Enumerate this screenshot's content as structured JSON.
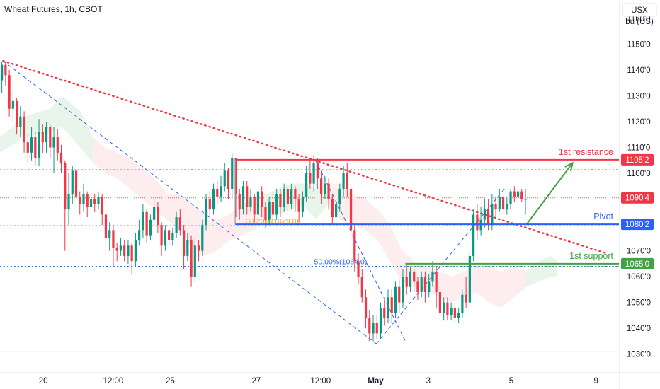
{
  "header": {
    "title": "Wheat Futures, 1h, CBOT",
    "currency_button": "USX",
    "unit_button": "bu (US)"
  },
  "chart_data": {
    "type": "candlestick",
    "title": "Wheat Futures, 1h, CBOT",
    "ylim": [
      1024,
      1166
    ],
    "xlim": [
      0,
      100
    ],
    "y_ticks": [
      {
        "value": 1160,
        "label": "1160'0"
      },
      {
        "value": 1150,
        "label": "1150'0"
      },
      {
        "value": 1140,
        "label": "1140'0"
      },
      {
        "value": 1130,
        "label": "1130'0"
      },
      {
        "value": 1120,
        "label": "1120'0"
      },
      {
        "value": 1110,
        "label": "1110'0"
      },
      {
        "value": 1100,
        "label": "1100'0"
      },
      {
        "value": 1070,
        "label": "1070'0"
      },
      {
        "value": 1060,
        "label": "1060'0"
      },
      {
        "value": 1050,
        "label": "1050'0"
      },
      {
        "value": 1040,
        "label": "1040'0"
      },
      {
        "value": 1030,
        "label": "1030'0"
      }
    ],
    "x_ticks": [
      {
        "value": 7,
        "label": "20"
      },
      {
        "value": 18.3,
        "label": "12:00"
      },
      {
        "value": 27.5,
        "label": "25"
      },
      {
        "value": 41.4,
        "label": "27"
      },
      {
        "value": 51.8,
        "label": "12:00"
      },
      {
        "value": 60.7,
        "label": "May"
      },
      {
        "value": 69.2,
        "label": "3"
      },
      {
        "value": 82.6,
        "label": "5"
      },
      {
        "value": 96.3,
        "label": "9"
      }
    ],
    "levels": [
      {
        "name": "1st resistance",
        "value": 1105.25,
        "tag": "1105'2",
        "color": "#f23645",
        "x_start": 38
      },
      {
        "name": "Pivot",
        "value": 1080.25,
        "tag": "1080'2",
        "color": "#2962ff",
        "x_start": 38
      },
      {
        "name": "1st support",
        "value": 1065,
        "tag": "1065'0",
        "color": "#43a047",
        "x_start": 65.5
      }
    ],
    "current_price": {
      "value": 1090.5,
      "tag": "1090'4",
      "color": "#f23645"
    },
    "fib_levels": [
      {
        "label": "50.00%(1064.0)",
        "value": 1064,
        "color": "#2962ff"
      },
      {
        "label": "38.20%(1079.8)",
        "value": 1079.8,
        "color": "#f9a825"
      },
      {
        "label": "",
        "value": 1101.5,
        "color": "#f9a825"
      }
    ],
    "trendline": {
      "from": [
        0.5,
        1143.5
      ],
      "to": [
        98,
        1069
      ]
    },
    "fib_retracement_line": {
      "from": [
        0.5,
        1143.5
      ],
      "to": [
        60.8,
        1034
      ],
      "color": "#2962ff"
    },
    "fib_retracement_line_2": {
      "from": [
        51,
        1105
      ],
      "to": [
        65.5,
        1035
      ],
      "color": "#2962ff"
    },
    "fib_retracement_line_3": {
      "from": [
        60.8,
        1034
      ],
      "to": [
        81.5,
        1094
      ],
      "color": "#2962ff"
    },
    "forecast_arrow": {
      "from": [
        85,
        1080
      ],
      "to": [
        92.5,
        1104
      ],
      "color": "#43a047"
    },
    "candles": [
      [
        0.3,
        1136,
        1142,
        1143,
        1131
      ],
      [
        0.9,
        1142,
        1138,
        1143,
        1134
      ],
      [
        1.5,
        1138,
        1125,
        1140,
        1122
      ],
      [
        2.1,
        1125,
        1128,
        1131,
        1120
      ],
      [
        2.7,
        1128,
        1118,
        1129,
        1115
      ],
      [
        3.3,
        1118,
        1122,
        1126,
        1114
      ],
      [
        3.9,
        1122,
        1112,
        1124,
        1108
      ],
      [
        4.5,
        1112,
        1108,
        1115,
        1104
      ],
      [
        5.1,
        1108,
        1114,
        1118,
        1105
      ],
      [
        5.7,
        1114,
        1106,
        1116,
        1103
      ],
      [
        6.3,
        1106,
        1116,
        1121,
        1103
      ],
      [
        6.9,
        1116,
        1112,
        1119,
        1108
      ],
      [
        7.5,
        1112,
        1118,
        1120,
        1108
      ],
      [
        8.1,
        1118,
        1110,
        1119,
        1106
      ],
      [
        8.7,
        1110,
        1114,
        1118,
        1100
      ],
      [
        9.3,
        1114,
        1108,
        1117,
        1105
      ],
      [
        9.9,
        1108,
        1104,
        1111,
        1100
      ],
      [
        10.5,
        1104,
        1086,
        1105,
        1070
      ],
      [
        11.1,
        1086,
        1092,
        1100,
        1080
      ],
      [
        11.7,
        1092,
        1101,
        1103,
        1088
      ],
      [
        12.3,
        1101,
        1091,
        1102,
        1085
      ],
      [
        12.9,
        1091,
        1088,
        1093,
        1084
      ],
      [
        13.5,
        1088,
        1092,
        1096,
        1085
      ],
      [
        14.1,
        1092,
        1087,
        1093,
        1083
      ],
      [
        14.7,
        1087,
        1090,
        1094,
        1084
      ],
      [
        15.3,
        1090,
        1088,
        1092,
        1085
      ],
      [
        15.9,
        1088,
        1091,
        1093,
        1086
      ],
      [
        16.5,
        1091,
        1084,
        1092,
        1080
      ],
      [
        17.1,
        1084,
        1075,
        1086,
        1068
      ],
      [
        17.7,
        1075,
        1078,
        1081,
        1070
      ],
      [
        18.3,
        1078,
        1071,
        1080,
        1064
      ],
      [
        18.9,
        1071,
        1070,
        1073,
        1066
      ],
      [
        19.5,
        1070,
        1072,
        1075,
        1068
      ],
      [
        20.1,
        1072,
        1068,
        1074,
        1066
      ],
      [
        20.7,
        1068,
        1072,
        1074,
        1065
      ],
      [
        21.3,
        1072,
        1066,
        1073,
        1061
      ],
      [
        21.9,
        1066,
        1074,
        1077,
        1064
      ],
      [
        22.5,
        1074,
        1078,
        1082,
        1072
      ],
      [
        23.1,
        1078,
        1085,
        1088,
        1075
      ],
      [
        23.7,
        1085,
        1076,
        1086,
        1073
      ],
      [
        24.3,
        1076,
        1082,
        1084,
        1074
      ],
      [
        24.9,
        1082,
        1087,
        1090,
        1080
      ],
      [
        25.5,
        1087,
        1080,
        1089,
        1077
      ],
      [
        26.1,
        1080,
        1072,
        1081,
        1068
      ],
      [
        26.7,
        1072,
        1078,
        1080,
        1070
      ],
      [
        27.3,
        1078,
        1074,
        1080,
        1072
      ],
      [
        27.9,
        1074,
        1077,
        1079,
        1072
      ],
      [
        28.5,
        1077,
        1083,
        1085,
        1075
      ],
      [
        29.1,
        1083,
        1078,
        1086,
        1076
      ],
      [
        29.7,
        1078,
        1068,
        1080,
        1063
      ],
      [
        30.3,
        1068,
        1074,
        1077,
        1066
      ],
      [
        30.9,
        1074,
        1060,
        1076,
        1056
      ],
      [
        31.5,
        1060,
        1072,
        1075,
        1058
      ],
      [
        32.1,
        1072,
        1070,
        1074,
        1066
      ],
      [
        32.7,
        1070,
        1080,
        1082,
        1068
      ],
      [
        33.3,
        1080,
        1090,
        1092,
        1078
      ],
      [
        33.9,
        1090,
        1086,
        1093,
        1083
      ],
      [
        34.5,
        1086,
        1094,
        1096,
        1084
      ],
      [
        35.1,
        1094,
        1091,
        1097,
        1088
      ],
      [
        35.7,
        1091,
        1095,
        1099,
        1089
      ],
      [
        36.3,
        1095,
        1101,
        1104,
        1093
      ],
      [
        36.9,
        1101,
        1094,
        1102,
        1090
      ],
      [
        37.5,
        1094,
        1106,
        1108,
        1090
      ],
      [
        38.1,
        1106,
        1092,
        1106,
        1083
      ],
      [
        38.7,
        1092,
        1086,
        1094,
        1082
      ],
      [
        39.3,
        1086,
        1095,
        1097,
        1084
      ],
      [
        39.9,
        1095,
        1087,
        1097,
        1084
      ],
      [
        40.5,
        1087,
        1091,
        1094,
        1085
      ],
      [
        41.1,
        1091,
        1084,
        1092,
        1081
      ],
      [
        41.7,
        1084,
        1093,
        1095,
        1082
      ],
      [
        42.3,
        1093,
        1087,
        1095,
        1083
      ],
      [
        42.9,
        1087,
        1082,
        1089,
        1079
      ],
      [
        43.5,
        1082,
        1089,
        1091,
        1080
      ],
      [
        44.1,
        1089,
        1084,
        1093,
        1081
      ],
      [
        44.7,
        1084,
        1092,
        1094,
        1082
      ],
      [
        45.3,
        1092,
        1087,
        1094,
        1083
      ],
      [
        45.9,
        1087,
        1094,
        1096,
        1085
      ],
      [
        46.5,
        1094,
        1088,
        1096,
        1084
      ],
      [
        47.1,
        1088,
        1094,
        1096,
        1086
      ],
      [
        47.7,
        1094,
        1090,
        1095,
        1085
      ],
      [
        48.3,
        1090,
        1085,
        1092,
        1081
      ],
      [
        48.9,
        1085,
        1091,
        1093,
        1083
      ],
      [
        49.5,
        1091,
        1100,
        1103,
        1089
      ],
      [
        50.1,
        1100,
        1096,
        1106,
        1094
      ],
      [
        50.7,
        1096,
        1104,
        1107,
        1093
      ],
      [
        51.3,
        1104,
        1098,
        1106,
        1094
      ],
      [
        51.9,
        1098,
        1092,
        1101,
        1088
      ],
      [
        52.5,
        1092,
        1096,
        1099,
        1090
      ],
      [
        53.1,
        1096,
        1090,
        1098,
        1086
      ],
      [
        53.7,
        1090,
        1083,
        1092,
        1080
      ],
      [
        54.3,
        1083,
        1088,
        1090,
        1080
      ],
      [
        54.9,
        1088,
        1094,
        1096,
        1085
      ],
      [
        55.5,
        1094,
        1100,
        1103,
        1091
      ],
      [
        56.1,
        1100,
        1094,
        1104,
        1091
      ],
      [
        56.7,
        1094,
        1078,
        1096,
        1075
      ],
      [
        57.3,
        1078,
        1066,
        1080,
        1062
      ],
      [
        57.9,
        1066,
        1060,
        1069,
        1057
      ],
      [
        58.5,
        1060,
        1052,
        1063,
        1050
      ],
      [
        59.1,
        1052,
        1044,
        1055,
        1040
      ],
      [
        59.7,
        1044,
        1038,
        1047,
        1035
      ],
      [
        60.3,
        1038,
        1042,
        1045,
        1035
      ],
      [
        60.9,
        1042,
        1038,
        1045,
        1036
      ],
      [
        61.5,
        1038,
        1048,
        1050,
        1036
      ],
      [
        62.1,
        1048,
        1044,
        1051,
        1041
      ],
      [
        62.7,
        1044,
        1052,
        1055,
        1042
      ],
      [
        63.3,
        1052,
        1046,
        1055,
        1042
      ],
      [
        63.9,
        1046,
        1056,
        1058,
        1044
      ],
      [
        64.5,
        1056,
        1050,
        1059,
        1046
      ],
      [
        65.1,
        1050,
        1060,
        1063,
        1048
      ],
      [
        65.7,
        1060,
        1056,
        1065,
        1053
      ],
      [
        66.3,
        1056,
        1062,
        1064,
        1054
      ],
      [
        66.9,
        1062,
        1058,
        1063,
        1054
      ],
      [
        67.5,
        1058,
        1054,
        1060,
        1051
      ],
      [
        68.1,
        1054,
        1060,
        1062,
        1052
      ],
      [
        68.7,
        1060,
        1054,
        1062,
        1050
      ],
      [
        69.3,
        1054,
        1058,
        1061,
        1052
      ],
      [
        69.9,
        1058,
        1062,
        1066,
        1056
      ],
      [
        70.5,
        1062,
        1054,
        1064,
        1048
      ],
      [
        71.1,
        1054,
        1046,
        1056,
        1043
      ],
      [
        71.7,
        1046,
        1050,
        1052,
        1043
      ],
      [
        72.3,
        1050,
        1045,
        1052,
        1043
      ],
      [
        72.9,
        1045,
        1048,
        1050,
        1043
      ],
      [
        73.5,
        1048,
        1044,
        1050,
        1042
      ],
      [
        74.1,
        1044,
        1046,
        1048,
        1042
      ],
      [
        74.7,
        1046,
        1053,
        1055,
        1044
      ],
      [
        75.3,
        1053,
        1050,
        1060,
        1048
      ],
      [
        75.9,
        1050,
        1068,
        1070,
        1049
      ],
      [
        76.5,
        1068,
        1084,
        1086,
        1066
      ],
      [
        77.1,
        1084,
        1078,
        1088,
        1074
      ],
      [
        77.7,
        1078,
        1082,
        1087,
        1076
      ],
      [
        78.3,
        1082,
        1086,
        1090,
        1079
      ],
      [
        78.9,
        1086,
        1080,
        1090,
        1078
      ],
      [
        79.5,
        1080,
        1088,
        1092,
        1078
      ],
      [
        80.1,
        1088,
        1086,
        1091,
        1083
      ],
      [
        80.7,
        1086,
        1091,
        1094,
        1085
      ],
      [
        81.3,
        1091,
        1086,
        1093,
        1084
      ],
      [
        81.9,
        1086,
        1088,
        1091,
        1084
      ],
      [
        82.5,
        1088,
        1093,
        1094,
        1086
      ],
      [
        83.1,
        1093,
        1091,
        1095,
        1089
      ],
      [
        83.7,
        1091,
        1093,
        1094,
        1090
      ],
      [
        84.3,
        1093,
        1090,
        1094,
        1089
      ],
      [
        84.9,
        1090,
        1090,
        1094,
        1084
      ]
    ],
    "cloud": [
      [
        0,
        1114,
        1108,
        "g"
      ],
      [
        4,
        1122,
        1114,
        "g"
      ],
      [
        8,
        1125,
        1116,
        "g"
      ],
      [
        10,
        1130,
        1118,
        "g"
      ],
      [
        13,
        1124,
        1110,
        "g"
      ],
      [
        15,
        1114,
        1104,
        "r"
      ],
      [
        17,
        1110,
        1100,
        "r"
      ],
      [
        19,
        1108,
        1098,
        "r"
      ],
      [
        21,
        1106,
        1094,
        "r"
      ],
      [
        23,
        1102,
        1090,
        "r"
      ],
      [
        25,
        1098,
        1086,
        "r"
      ],
      [
        27,
        1092,
        1082,
        "r"
      ],
      [
        29,
        1092,
        1078,
        "r"
      ],
      [
        31,
        1088,
        1072,
        "r"
      ],
      [
        33,
        1084,
        1068,
        "r"
      ],
      [
        35,
        1082,
        1070,
        "r"
      ],
      [
        37,
        1084,
        1074,
        "r"
      ],
      [
        39,
        1088,
        1076,
        "r"
      ],
      [
        41,
        1090,
        1078,
        "r"
      ],
      [
        43,
        1092,
        1082,
        "g"
      ],
      [
        45,
        1094,
        1084,
        "g"
      ],
      [
        47,
        1096,
        1086,
        "g"
      ],
      [
        49,
        1096,
        1088,
        "g"
      ],
      [
        51,
        1094,
        1082,
        "g"
      ],
      [
        53,
        1096,
        1088,
        "r"
      ],
      [
        55,
        1096,
        1082,
        "r"
      ],
      [
        57,
        1092,
        1080,
        "r"
      ],
      [
        59,
        1090,
        1078,
        "r"
      ],
      [
        61,
        1086,
        1074,
        "r"
      ],
      [
        63,
        1080,
        1066,
        "r"
      ],
      [
        65,
        1070,
        1058,
        "r"
      ],
      [
        67,
        1066,
        1056,
        "r"
      ],
      [
        69,
        1064,
        1054,
        "r"
      ],
      [
        71,
        1062,
        1052,
        "r"
      ],
      [
        73,
        1060,
        1050,
        "r"
      ],
      [
        75,
        1062,
        1052,
        "r"
      ],
      [
        77,
        1064,
        1054,
        "r"
      ],
      [
        79,
        1064,
        1050,
        "r"
      ],
      [
        81,
        1062,
        1048,
        "r"
      ],
      [
        83,
        1064,
        1052,
        "r"
      ],
      [
        85,
        1062,
        1056,
        "g"
      ],
      [
        87,
        1066,
        1058,
        "g"
      ],
      [
        89,
        1068,
        1060,
        "g"
      ],
      [
        90,
        1066,
        1060,
        "g"
      ]
    ]
  }
}
